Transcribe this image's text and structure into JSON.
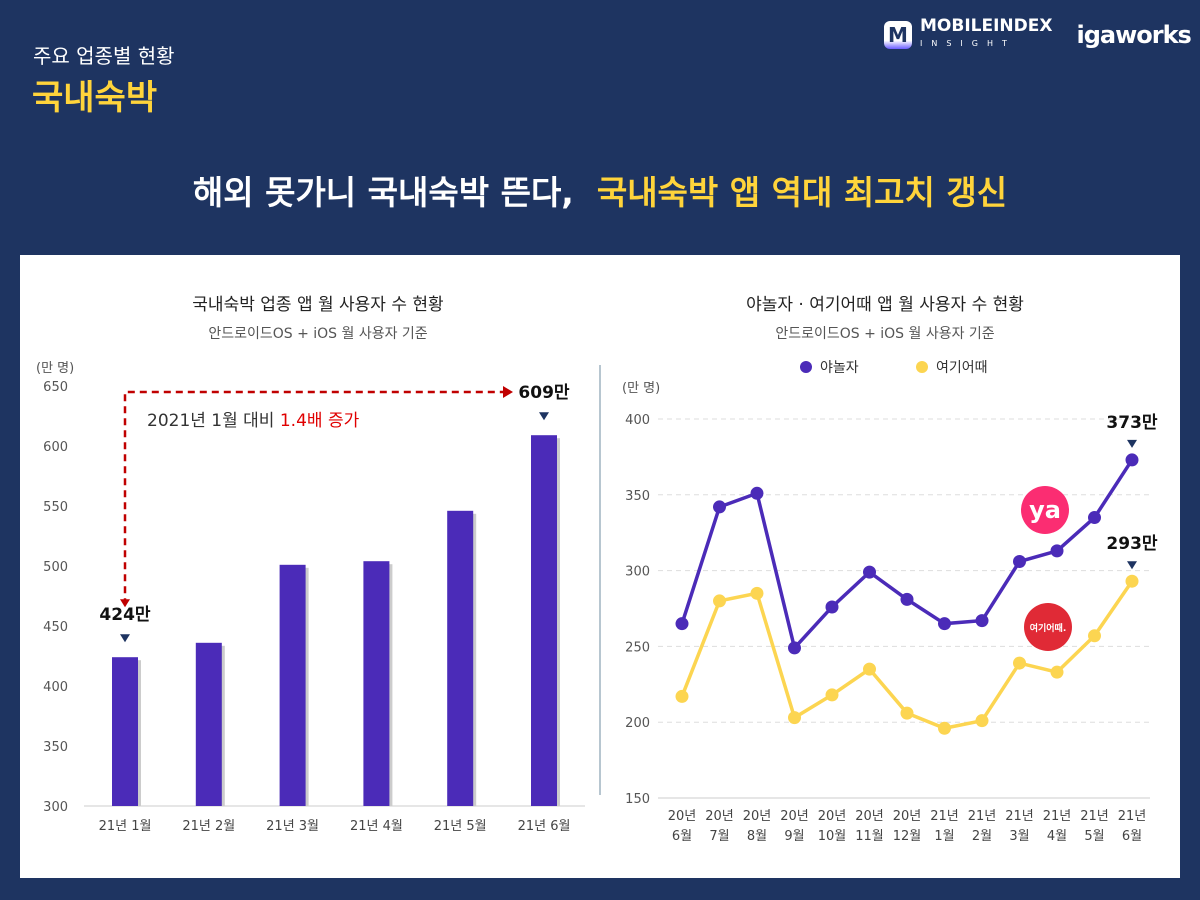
{
  "header": {
    "subtitle": "주요 업종별 현황",
    "category": "국내숙박",
    "headline_white": "해외 못가니 국내숙박 뜬다,",
    "headline_yellow": "국내숙박 앱 역대 최고치 갱신",
    "logo_main": "MOBILEINDEX",
    "logo_sub": "INSIGHT",
    "logo_brand": "igaworks"
  },
  "colors": {
    "background": "#1e3461",
    "accent": "#ffd43b",
    "purple": "#4b2bb8",
    "yellow": "#fcd551",
    "annotation": "#c00000"
  },
  "chart_data": [
    {
      "type": "bar",
      "title": "국내숙박 업종 앱 월 사용자 수 현황",
      "subtitle": "안드로이드OS + iOS 월 사용자 기준",
      "ylabel": "(만 명)",
      "ylim": [
        300,
        650
      ],
      "yticks": [
        300,
        350,
        400,
        450,
        500,
        550,
        600,
        650
      ],
      "categories": [
        "21년 1월",
        "21년 2월",
        "21년 3월",
        "21년 4월",
        "21년 5월",
        "21년 6월"
      ],
      "values": [
        424,
        436,
        501,
        504,
        546,
        609
      ],
      "labels": {
        "first": "424만",
        "last": "609만"
      },
      "annotation": {
        "text": "2021년 1월 대비 ",
        "highlight": "1.4배 증가"
      }
    },
    {
      "type": "line",
      "title": "야놀자 · 여기어때 앱 월 사용자 수 현황",
      "subtitle": "안드로이드OS + iOS 월 사용자 기준",
      "ylabel": "(만 명)",
      "ylim": [
        150,
        400
      ],
      "yticks": [
        150,
        200,
        250,
        300,
        350,
        400
      ],
      "grid": true,
      "legend": "top",
      "categories": [
        [
          "20년",
          "6월"
        ],
        [
          "20년",
          "7월"
        ],
        [
          "20년",
          "8월"
        ],
        [
          "20년",
          "9월"
        ],
        [
          "20년",
          "10월"
        ],
        [
          "20년",
          "11월"
        ],
        [
          "20년",
          "12월"
        ],
        [
          "21년",
          "1월"
        ],
        [
          "21년",
          "2월"
        ],
        [
          "21년",
          "3월"
        ],
        [
          "21년",
          "4월"
        ],
        [
          "21년",
          "5월"
        ],
        [
          "21년",
          "6월"
        ]
      ],
      "series": [
        {
          "name": "야놀자",
          "color": "#4b2bb8",
          "values": [
            265,
            342,
            351,
            249,
            276,
            299,
            281,
            265,
            267,
            306,
            313,
            335,
            373
          ],
          "end_label": "373만",
          "logo": "ya"
        },
        {
          "name": "여기어때",
          "color": "#fcd551",
          "values": [
            217,
            280,
            285,
            203,
            218,
            235,
            206,
            196,
            201,
            239,
            233,
            257,
            293
          ],
          "end_label": "293만",
          "logo": "여기어때."
        }
      ]
    }
  ]
}
